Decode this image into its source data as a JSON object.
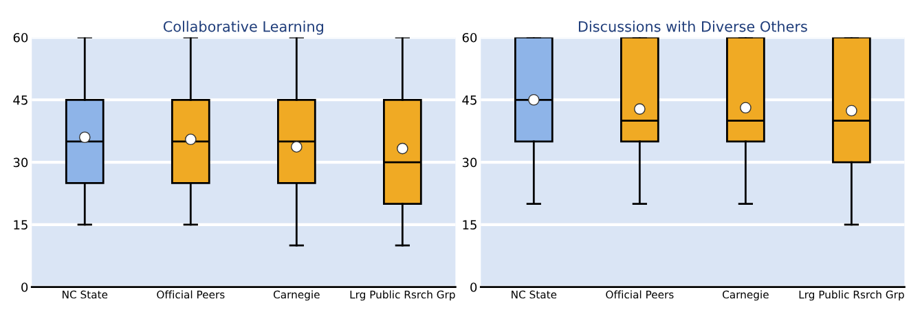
{
  "chart_data": [
    {
      "type": "box",
      "title": "Collaborative Learning",
      "categories": [
        "NC State",
        "Official Peers",
        "Carnegie",
        "Lrg Public Rsrch Grp"
      ],
      "colors": [
        "#8eb4e8",
        "#f0aa24",
        "#f0aa24",
        "#f0aa24"
      ],
      "ylim": [
        0,
        60
      ],
      "yticks": [
        0,
        15,
        30,
        45,
        60
      ],
      "grid": "y",
      "boxes": [
        {
          "low": 15,
          "q1": 25,
          "median": 35,
          "q3": 45,
          "high": 60,
          "mean": 36
        },
        {
          "low": 15,
          "q1": 25,
          "median": 35,
          "q3": 45,
          "high": 60,
          "mean": 35.5
        },
        {
          "low": 10,
          "q1": 25,
          "median": 35,
          "q3": 45,
          "high": 60,
          "mean": 33.7
        },
        {
          "low": 10,
          "q1": 20,
          "median": 30,
          "q3": 45,
          "high": 60,
          "mean": 33.3
        }
      ]
    },
    {
      "type": "box",
      "title": "Discussions with Diverse Others",
      "categories": [
        "NC State",
        "Official Peers",
        "Carnegie",
        "Lrg Public Rsrch Grp"
      ],
      "colors": [
        "#8eb4e8",
        "#f0aa24",
        "#f0aa24",
        "#f0aa24"
      ],
      "ylim": [
        0,
        60
      ],
      "yticks": [
        0,
        15,
        30,
        45,
        60
      ],
      "grid": "y",
      "boxes": [
        {
          "low": 20,
          "q1": 35,
          "median": 45,
          "q3": 60,
          "high": 60,
          "mean": 45
        },
        {
          "low": 20,
          "q1": 35,
          "median": 40,
          "q3": 60,
          "high": 60,
          "mean": 42.8
        },
        {
          "low": 20,
          "q1": 35,
          "median": 40,
          "q3": 60,
          "high": 60,
          "mean": 43.1
        },
        {
          "low": 15,
          "q1": 30,
          "median": 40,
          "q3": 60,
          "high": 60,
          "mean": 42.4
        }
      ]
    }
  ]
}
